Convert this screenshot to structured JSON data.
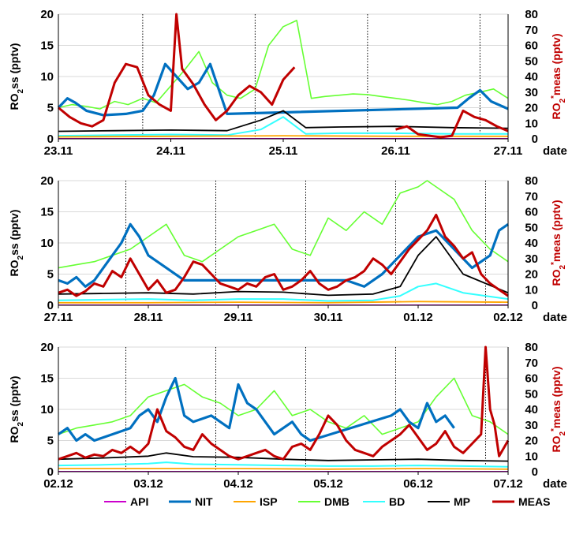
{
  "chart_data": [
    {
      "type": "line",
      "panel": 1,
      "x_start": "23.11",
      "x_ticks": [
        "23.11",
        "24.11",
        "25.11",
        "26.11",
        "27.11"
      ],
      "xlabel": "date",
      "ylabel_left": "RO₂ss (pptv)",
      "ylabel_right": "RO₂*meas (pptv)",
      "ylim_left": [
        0,
        20
      ],
      "ylim_right": [
        0,
        80
      ],
      "yticks_left": [
        0,
        5,
        10,
        15,
        20
      ],
      "yticks_right": [
        0,
        10,
        20,
        30,
        40,
        50,
        60,
        70,
        80
      ],
      "xlim_days": [
        0,
        4
      ],
      "grid": "horizontal gridlines; dotted vertical lines at 18:00",
      "series": [
        {
          "name": "DMB",
          "axis": "left",
          "x": [
            0,
            0.12,
            0.25,
            0.37,
            0.5,
            0.62,
            0.75,
            0.87,
            1.0,
            1.12,
            1.25,
            1.37,
            1.5,
            1.62,
            1.75,
            1.87,
            2.0,
            2.12,
            2.25,
            2.37,
            2.5,
            2.62,
            2.75,
            2.87,
            3.0,
            3.12,
            3.25,
            3.37,
            3.5,
            3.62,
            3.75,
            3.87,
            4.0
          ],
          "y": [
            5,
            5.5,
            5.2,
            4.8,
            6,
            5.5,
            6.5,
            5.8,
            8.5,
            11,
            14,
            9,
            7,
            6.5,
            8,
            15,
            18,
            19,
            6.5,
            6.8,
            7,
            7.2,
            7.1,
            6.8,
            6.5,
            6.2,
            5.8,
            5.5,
            6,
            7,
            7.5,
            8,
            6.5
          ]
        },
        {
          "name": "NIT",
          "axis": "left",
          "x": [
            0,
            0.08,
            0.15,
            0.25,
            0.4,
            0.6,
            0.75,
            0.85,
            0.95,
            1.05,
            1.15,
            1.25,
            1.35,
            1.5,
            3.55,
            3.65,
            3.75,
            3.85,
            3.95,
            4.0
          ],
          "y": [
            5,
            6.5,
            5.8,
            4.5,
            3.8,
            4,
            4.5,
            7,
            12,
            10,
            8,
            9,
            12,
            4,
            5,
            6.5,
            7.8,
            6,
            5.2,
            4.8
          ]
        },
        {
          "name": "MP",
          "axis": "left",
          "x": [
            0,
            0.5,
            1.0,
            1.5,
            1.8,
            2.0,
            2.2,
            2.5,
            3.0,
            3.5,
            4.0
          ],
          "y": [
            1.2,
            1.3,
            1.4,
            1.3,
            3,
            4.5,
            1.8,
            1.9,
            2.0,
            1.8,
            1.7
          ]
        },
        {
          "name": "BD",
          "axis": "left",
          "x": [
            0,
            0.5,
            1.0,
            1.5,
            1.8,
            2.0,
            2.2,
            2.5,
            3.0,
            3.5,
            4.0
          ],
          "y": [
            0.5,
            0.6,
            0.7,
            0.6,
            1.5,
            3.5,
            0.8,
            0.9,
            0.9,
            0.8,
            0.8
          ]
        },
        {
          "name": "ISP",
          "axis": "left",
          "x": [
            0,
            1.0,
            2.0,
            3.0,
            4.0
          ],
          "y": [
            0.3,
            0.4,
            0.5,
            0.4,
            0.4
          ]
        },
        {
          "name": "API",
          "axis": "left",
          "x": [
            0,
            1.0,
            2.0,
            3.0,
            4.0
          ],
          "y": [
            0.05,
            0.05,
            0.05,
            0.05,
            0.05
          ]
        },
        {
          "name": "MEAS",
          "axis": "right",
          "x": [
            0,
            0.1,
            0.2,
            0.3,
            0.4,
            0.5,
            0.6,
            0.7,
            0.8,
            0.9,
            1.0,
            1.05,
            1.1,
            1.2,
            1.3,
            1.4,
            1.5,
            1.6,
            1.7,
            1.8,
            1.9,
            2.0,
            2.1,
            2.2,
            2.3,
            2.4,
            2.5,
            2.6,
            2.7,
            2.8,
            2.9,
            3.0,
            3.1,
            3.2,
            3.3,
            3.4,
            3.5,
            3.6,
            3.7,
            3.8,
            3.9,
            4.0
          ],
          "y": [
            20,
            14,
            10,
            8,
            12,
            36,
            48,
            46,
            28,
            22,
            18,
            80,
            45,
            35,
            22,
            12,
            18,
            28,
            34,
            30,
            22,
            38,
            46,
            null,
            null,
            null,
            null,
            null,
            null,
            null,
            null,
            6,
            8,
            3,
            2,
            1,
            2,
            18,
            14,
            12,
            8,
            5
          ]
        }
      ]
    },
    {
      "type": "line",
      "panel": 2,
      "x_start": "27.11",
      "x_ticks": [
        "27.11",
        "28.11",
        "29.11",
        "30.11",
        "01.12",
        "02.12"
      ],
      "xlabel": "date",
      "ylabel_left": "RO₂ss (pptv)",
      "ylabel_right": "RO₂*meas (pptv)",
      "ylim_left": [
        0,
        20
      ],
      "ylim_right": [
        0,
        80
      ],
      "yticks_left": [
        0,
        5,
        10,
        15,
        20
      ],
      "yticks_right": [
        0,
        10,
        20,
        30,
        40,
        50,
        60,
        70,
        80
      ],
      "xlim_days": [
        0,
        5
      ],
      "grid": "horizontal gridlines; dotted vertical lines at 18:00",
      "series": [
        {
          "name": "DMB",
          "axis": "left",
          "x": [
            0,
            0.2,
            0.4,
            0.6,
            0.8,
            1.0,
            1.2,
            1.4,
            1.6,
            1.8,
            2.0,
            2.2,
            2.4,
            2.6,
            2.8,
            3.0,
            3.2,
            3.4,
            3.6,
            3.8,
            4.0,
            4.1,
            4.2,
            4.4,
            4.6,
            4.8,
            5.0
          ],
          "y": [
            6,
            6.5,
            7,
            8,
            9,
            11,
            13,
            8,
            7,
            9,
            11,
            12,
            13,
            9,
            8,
            14,
            12,
            15,
            13,
            18,
            19,
            20,
            19,
            17,
            12,
            9,
            7
          ]
        },
        {
          "name": "NIT",
          "axis": "left",
          "x": [
            0,
            0.1,
            0.2,
            0.3,
            0.4,
            0.7,
            0.8,
            0.9,
            1.0,
            1.2,
            1.4,
            3.2,
            3.4,
            3.6,
            3.8,
            4.0,
            4.2,
            4.4,
            4.6,
            4.8,
            4.9,
            5.0
          ],
          "y": [
            4,
            3.5,
            4.5,
            3,
            4,
            10,
            13,
            11,
            8,
            6,
            4,
            4,
            3,
            5,
            8,
            11,
            12,
            9,
            6,
            8,
            12,
            13
          ]
        },
        {
          "name": "MP",
          "axis": "left",
          "x": [
            0,
            0.5,
            1.0,
            1.5,
            2.0,
            2.5,
            3.0,
            3.5,
            3.8,
            4.0,
            4.2,
            4.5,
            5.0
          ],
          "y": [
            1.8,
            1.9,
            2.0,
            1.8,
            2.2,
            2.1,
            1.6,
            1.8,
            3,
            8,
            11,
            5,
            2
          ]
        },
        {
          "name": "BD",
          "axis": "left",
          "x": [
            0,
            0.5,
            1.0,
            1.5,
            2.0,
            2.5,
            3.0,
            3.5,
            3.8,
            4.0,
            4.2,
            4.5,
            5.0
          ],
          "y": [
            0.8,
            0.9,
            1.0,
            0.8,
            1.0,
            1.0,
            0.7,
            0.8,
            1.5,
            3,
            3.5,
            2,
            1
          ]
        },
        {
          "name": "ISP",
          "axis": "left",
          "x": [
            0,
            1.0,
            2.0,
            3.0,
            4.0,
            5.0
          ],
          "y": [
            0.4,
            0.4,
            0.5,
            0.4,
            0.6,
            0.5
          ]
        },
        {
          "name": "API",
          "axis": "left",
          "x": [
            0,
            1.0,
            2.0,
            3.0,
            4.0,
            5.0
          ],
          "y": [
            0.05,
            0.05,
            0.05,
            0.05,
            0.05,
            0.05
          ]
        },
        {
          "name": "MEAS",
          "axis": "right",
          "x": [
            0,
            0.1,
            0.2,
            0.3,
            0.4,
            0.5,
            0.6,
            0.7,
            0.8,
            0.9,
            1.0,
            1.1,
            1.2,
            1.3,
            1.4,
            1.5,
            1.6,
            1.7,
            1.8,
            1.9,
            2.0,
            2.1,
            2.2,
            2.3,
            2.4,
            2.5,
            2.6,
            2.7,
            2.8,
            2.9,
            3.0,
            3.1,
            3.2,
            3.3,
            3.4,
            3.5,
            3.6,
            3.7,
            3.8,
            3.9,
            4.0,
            4.1,
            4.2,
            4.3,
            4.4,
            4.5,
            4.6,
            4.7,
            4.8,
            4.9,
            5.0
          ],
          "y": [
            8,
            10,
            6,
            9,
            14,
            12,
            22,
            18,
            30,
            20,
            10,
            16,
            8,
            10,
            18,
            28,
            26,
            20,
            14,
            12,
            10,
            14,
            12,
            18,
            20,
            10,
            12,
            16,
            22,
            14,
            10,
            12,
            16,
            18,
            22,
            30,
            26,
            20,
            28,
            36,
            42,
            48,
            58,
            44,
            38,
            30,
            34,
            20,
            14,
            10,
            6
          ]
        }
      ]
    },
    {
      "type": "line",
      "panel": 3,
      "x_start": "02.12",
      "x_ticks": [
        "02.12",
        "03.12",
        "04.12",
        "05.12",
        "06.12",
        "07.12"
      ],
      "xlabel": "date",
      "ylabel_left": "RO₂ss (pptv)",
      "ylabel_right": "RO₂*meas (pptv)",
      "ylim_left": [
        0,
        20
      ],
      "ylim_right": [
        0,
        80
      ],
      "yticks_left": [
        0,
        5,
        10,
        15,
        20
      ],
      "yticks_right": [
        0,
        10,
        20,
        30,
        40,
        50,
        60,
        70,
        80
      ],
      "xlim_days": [
        0,
        5
      ],
      "grid": "horizontal gridlines; dotted vertical lines at 18:00",
      "series": [
        {
          "name": "DMB",
          "axis": "left",
          "x": [
            0,
            0.2,
            0.4,
            0.6,
            0.8,
            1.0,
            1.2,
            1.4,
            1.6,
            1.8,
            2.0,
            2.2,
            2.4,
            2.6,
            2.8,
            3.0,
            3.2,
            3.4,
            3.6,
            3.8,
            4.0,
            4.2,
            4.4,
            4.6,
            4.8,
            5.0
          ],
          "y": [
            6,
            7,
            7.5,
            8,
            9,
            12,
            13,
            14,
            12,
            11,
            9,
            10,
            13,
            9,
            10,
            8,
            7,
            9,
            6,
            7,
            8,
            12,
            15,
            9,
            8,
            6
          ]
        },
        {
          "name": "NIT",
          "axis": "left",
          "x": [
            0,
            0.1,
            0.2,
            0.3,
            0.4,
            0.6,
            0.8,
            0.9,
            1.0,
            1.1,
            1.2,
            1.3,
            1.4,
            1.5,
            1.7,
            1.9,
            2.0,
            2.1,
            2.2,
            2.3,
            2.4,
            2.5,
            2.6,
            2.7,
            2.8,
            3.7,
            3.8,
            3.9,
            4.0,
            4.1,
            4.2,
            4.3,
            4.4
          ],
          "y": [
            6,
            7,
            5,
            6,
            5,
            6,
            7,
            9,
            10,
            8,
            12,
            15,
            9,
            8,
            9,
            7,
            14,
            11,
            10,
            8,
            6,
            7,
            8,
            6,
            5,
            9,
            10,
            8,
            7,
            11,
            8,
            9,
            7
          ]
        },
        {
          "name": "MP",
          "axis": "left",
          "x": [
            0,
            0.5,
            1.0,
            1.2,
            1.5,
            2.0,
            2.5,
            3.0,
            3.5,
            4.0,
            4.5,
            5.0
          ],
          "y": [
            2,
            2.2,
            2.5,
            3,
            2.4,
            2.3,
            2.0,
            1.8,
            1.9,
            2.0,
            1.8,
            1.7
          ]
        },
        {
          "name": "BD",
          "axis": "left",
          "x": [
            0,
            0.5,
            1.0,
            1.2,
            1.5,
            2.0,
            2.5,
            3.0,
            3.5,
            4.0,
            4.5,
            5.0
          ],
          "y": [
            1,
            1.1,
            1.3,
            1.5,
            1.2,
            1.1,
            1.0,
            0.9,
            0.9,
            1.0,
            0.9,
            0.8
          ]
        },
        {
          "name": "ISP",
          "axis": "left",
          "x": [
            0,
            1.0,
            2.0,
            3.0,
            4.0,
            5.0
          ],
          "y": [
            0.5,
            0.5,
            0.5,
            0.4,
            0.5,
            0.4
          ]
        },
        {
          "name": "API",
          "axis": "left",
          "x": [
            0,
            1.0,
            2.0,
            3.0,
            4.0,
            5.0
          ],
          "y": [
            0.05,
            0.05,
            0.05,
            0.05,
            0.05,
            0.05
          ]
        },
        {
          "name": "MEAS",
          "axis": "right",
          "x": [
            0,
            0.1,
            0.2,
            0.3,
            0.4,
            0.5,
            0.6,
            0.7,
            0.8,
            0.9,
            1.0,
            1.1,
            1.2,
            1.3,
            1.4,
            1.5,
            1.6,
            1.7,
            1.8,
            1.9,
            2.0,
            2.1,
            2.2,
            2.3,
            2.4,
            2.5,
            2.6,
            2.7,
            2.8,
            2.9,
            3.0,
            3.1,
            3.2,
            3.3,
            3.4,
            3.5,
            3.6,
            3.7,
            3.8,
            3.9,
            4.0,
            4.1,
            4.2,
            4.3,
            4.4,
            4.5,
            4.6,
            4.7,
            4.75,
            4.8,
            4.85,
            4.9,
            5.0
          ],
          "y": [
            8,
            10,
            12,
            9,
            11,
            10,
            14,
            12,
            16,
            12,
            18,
            40,
            26,
            22,
            16,
            14,
            24,
            18,
            14,
            10,
            8,
            10,
            12,
            14,
            10,
            8,
            16,
            18,
            14,
            24,
            36,
            30,
            20,
            14,
            12,
            10,
            16,
            20,
            24,
            30,
            22,
            14,
            18,
            26,
            16,
            12,
            18,
            24,
            80,
            40,
            30,
            10,
            20
          ]
        }
      ]
    }
  ],
  "legend": [
    {
      "name": "API",
      "color": "#CC00CC"
    },
    {
      "name": "NIT",
      "color": "#0070C0"
    },
    {
      "name": "ISP",
      "color": "#FFA500"
    },
    {
      "name": "DMB",
      "color": "#66FF33"
    },
    {
      "name": "BD",
      "color": "#33FFFF"
    },
    {
      "name": "MP",
      "color": "#000000"
    },
    {
      "name": "MEAS",
      "color": "#C00000"
    }
  ],
  "legend_placement": "bottom",
  "right_axis_color": "#C00000"
}
